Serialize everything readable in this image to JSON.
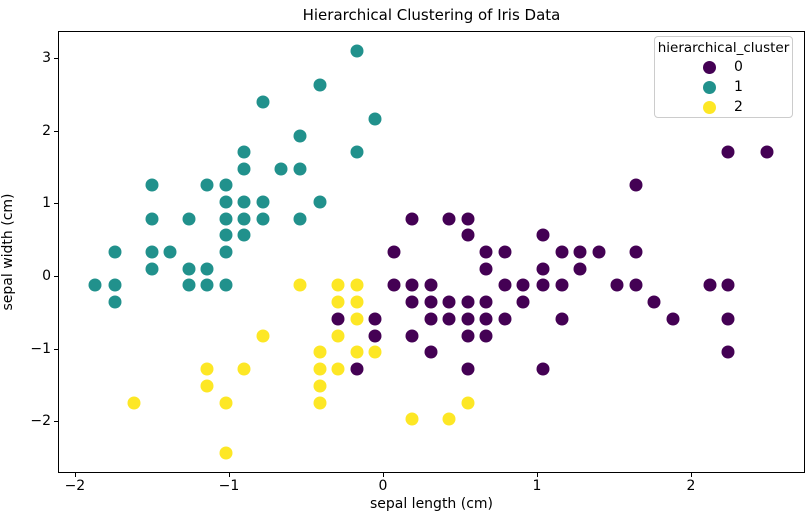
{
  "chart_data": {
    "type": "scatter",
    "title": "Hierarchical Clustering of Iris Data",
    "xlabel": "sepal length (cm)",
    "ylabel": "sepal width (cm)",
    "xlim": [
      -2.11,
      2.74
    ],
    "ylim": [
      -2.71,
      3.37
    ],
    "x_ticks": [
      -2,
      -1,
      0,
      1,
      2
    ],
    "x_tick_labels": [
      "−2",
      "−1",
      "0",
      "1",
      "2"
    ],
    "y_ticks": [
      -2,
      -1,
      0,
      1,
      2,
      3
    ],
    "y_tick_labels": [
      "−2",
      "−1",
      "0",
      "1",
      "2",
      "3"
    ],
    "grid": false,
    "marker_size_px": 13,
    "legend": {
      "title": "hierarchical_cluster",
      "position": "upper right"
    },
    "series": [
      {
        "name": "0",
        "color": "#440154",
        "points": [
          [
            2.24,
            1.7
          ],
          [
            2.49,
            1.7
          ],
          [
            1.64,
            1.25
          ],
          [
            0.19,
            0.79
          ],
          [
            0.43,
            0.79
          ],
          [
            0.55,
            0.79
          ],
          [
            0.55,
            0.56
          ],
          [
            1.04,
            0.56
          ],
          [
            0.07,
            0.33
          ],
          [
            0.67,
            0.33
          ],
          [
            0.79,
            0.33
          ],
          [
            1.16,
            0.33
          ],
          [
            1.28,
            0.33
          ],
          [
            1.4,
            0.33
          ],
          [
            1.64,
            0.33
          ],
          [
            0.67,
            0.1
          ],
          [
            1.04,
            0.1
          ],
          [
            1.28,
            0.1
          ],
          [
            0.07,
            -0.13
          ],
          [
            0.19,
            -0.13
          ],
          [
            0.31,
            -0.13
          ],
          [
            0.79,
            -0.13
          ],
          [
            0.91,
            -0.13
          ],
          [
            1.04,
            -0.13
          ],
          [
            1.16,
            -0.13
          ],
          [
            1.52,
            -0.13
          ],
          [
            1.64,
            -0.13
          ],
          [
            2.12,
            -0.13
          ],
          [
            2.24,
            -0.13
          ],
          [
            0.19,
            -0.36
          ],
          [
            0.31,
            -0.36
          ],
          [
            0.43,
            -0.36
          ],
          [
            0.55,
            -0.36
          ],
          [
            0.67,
            -0.36
          ],
          [
            0.91,
            -0.36
          ],
          [
            1.76,
            -0.36
          ],
          [
            -0.29,
            -0.59
          ],
          [
            -0.05,
            -0.59
          ],
          [
            0.31,
            -0.59
          ],
          [
            0.43,
            -0.59
          ],
          [
            0.55,
            -0.59
          ],
          [
            0.67,
            -0.59
          ],
          [
            0.79,
            -0.59
          ],
          [
            1.16,
            -0.59
          ],
          [
            1.88,
            -0.59
          ],
          [
            2.24,
            -0.59
          ],
          [
            -0.05,
            -0.82
          ],
          [
            0.19,
            -0.82
          ],
          [
            0.55,
            -0.82
          ],
          [
            0.67,
            -0.82
          ],
          [
            0.31,
            -1.05
          ],
          [
            2.24,
            -1.05
          ],
          [
            -0.17,
            -1.28
          ],
          [
            0.55,
            -1.28
          ],
          [
            1.04,
            -1.28
          ]
        ]
      },
      {
        "name": "1",
        "color": "#21918c",
        "points": [
          [
            -0.17,
            3.09
          ],
          [
            -0.41,
            2.63
          ],
          [
            -0.78,
            2.4
          ],
          [
            -0.05,
            2.16
          ],
          [
            -0.54,
            1.93
          ],
          [
            -0.9,
            1.7
          ],
          [
            -0.17,
            1.7
          ],
          [
            -0.9,
            1.47
          ],
          [
            -0.66,
            1.47
          ],
          [
            -0.54,
            1.47
          ],
          [
            -1.5,
            1.25
          ],
          [
            -1.14,
            1.25
          ],
          [
            -1.02,
            1.25
          ],
          [
            -1.02,
            1.02
          ],
          [
            -0.9,
            1.02
          ],
          [
            -0.78,
            1.02
          ],
          [
            -0.41,
            1.02
          ],
          [
            -1.5,
            0.79
          ],
          [
            -1.26,
            0.79
          ],
          [
            -1.02,
            0.79
          ],
          [
            -0.9,
            0.79
          ],
          [
            -0.78,
            0.79
          ],
          [
            -0.54,
            0.79
          ],
          [
            -1.02,
            0.56
          ],
          [
            -0.9,
            0.56
          ],
          [
            -1.74,
            0.33
          ],
          [
            -1.5,
            0.33
          ],
          [
            -1.38,
            0.33
          ],
          [
            -1.02,
            0.33
          ],
          [
            -1.5,
            0.1
          ],
          [
            -1.26,
            0.1
          ],
          [
            -1.14,
            0.1
          ],
          [
            -1.87,
            -0.13
          ],
          [
            -1.74,
            -0.13
          ],
          [
            -1.26,
            -0.13
          ],
          [
            -1.14,
            -0.13
          ],
          [
            -1.02,
            -0.13
          ],
          [
            -1.74,
            -0.36
          ]
        ]
      },
      {
        "name": "2",
        "color": "#fde725",
        "points": [
          [
            -0.54,
            -0.13
          ],
          [
            -0.29,
            -0.13
          ],
          [
            -0.17,
            -0.13
          ],
          [
            -0.29,
            -0.36
          ],
          [
            -0.17,
            -0.36
          ],
          [
            -0.17,
            -0.59
          ],
          [
            -0.78,
            -0.82
          ],
          [
            -0.29,
            -0.82
          ],
          [
            -0.41,
            -1.05
          ],
          [
            -0.17,
            -1.05
          ],
          [
            -0.05,
            -1.05
          ],
          [
            -1.14,
            -1.28
          ],
          [
            -0.9,
            -1.28
          ],
          [
            -0.41,
            -1.28
          ],
          [
            -0.29,
            -1.28
          ],
          [
            -1.14,
            -1.51
          ],
          [
            -0.41,
            -1.51
          ],
          [
            -1.62,
            -1.74
          ],
          [
            -1.02,
            -1.74
          ],
          [
            -0.41,
            -1.74
          ],
          [
            0.55,
            -1.74
          ],
          [
            0.19,
            -1.97
          ],
          [
            0.43,
            -1.97
          ],
          [
            -1.02,
            -2.43
          ]
        ]
      }
    ]
  }
}
